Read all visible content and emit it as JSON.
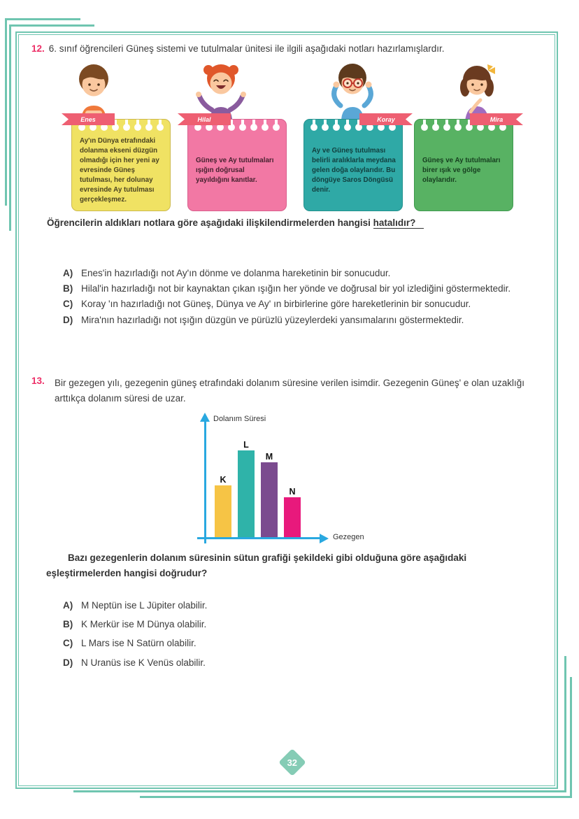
{
  "colors": {
    "frame": "#6fc5b0",
    "accent_number": "#ed2f67",
    "ribbon": "#ee5f72",
    "page_badge": "#85ccb5",
    "text": "#3b3b3b"
  },
  "page_number": "32",
  "q12": {
    "number": "12.",
    "intro": "6. sınıf öğrencileri Güneş sistemi ve tutulmalar ünitesi ile ilgili aşağıdaki notları hazırlamışlardır.",
    "students": [
      {
        "name": "Enes",
        "note": "Ay'ın Dünya etrafındaki dolanma ekseni düzgün olmadığı için her yeni ay evresinde Güneş tutulması, her dolunay evresinde Ay tutulması gerçekleşmez.",
        "card_color": "#f0e263",
        "card_border": "#cdba4e",
        "text_color": "#4b4422"
      },
      {
        "name": "Hilal",
        "note": "Güneş ve Ay tutulmaları ışığın doğrusal yayıldığını kanıtlar.",
        "card_color": "#f278a4",
        "card_border": "#d95e8d",
        "text_color": "#46212f"
      },
      {
        "name": "Koray",
        "note": "Ay ve Güneş tutulması belirli aralıklarla meydana gelen doğa olaylarıdır. Bu döngüye Saros Döngüsü denir.",
        "card_color": "#2fa9a6",
        "card_border": "#23918e",
        "text_color": "#113f3e"
      },
      {
        "name": "Mira",
        "note": "Güneş ve Ay tutulmaları birer ışık ve gölge olaylarıdır.",
        "card_color": "#58b263",
        "card_border": "#3f9a4e",
        "text_color": "#174020"
      }
    ],
    "stem": "Öğrencilerin aldıkları notlara göre aşağıdaki ilişkilendirmelerden hangisi ",
    "stem_underlined": "hatalıdır?",
    "options": [
      {
        "letter": "A)",
        "text": "Enes'in hazırladığı not Ay'ın dönme ve dolanma hareketinin bir sonucudur."
      },
      {
        "letter": "B)",
        "text": "Hilal'in hazırladığı not bir kaynaktan çıkan ışığın her yönde ve doğrusal bir yol izlediğini göstermektedir."
      },
      {
        "letter": "C)",
        "text": "Koray 'ın hazırladığı not Güneş, Dünya ve Ay' ın birbirlerine göre hareketlerinin bir sonucudur."
      },
      {
        "letter": "D)",
        "text": "Mira'nın hazırladığı not ışığın düzgün ve pürüzlü yüzeylerdeki yansımalarını göstermektedir."
      }
    ]
  },
  "q13": {
    "number": "13.",
    "intro": "Bir gezegen yılı, gezegenin güneş etrafındaki dolanım süresine verilen isimdir. Gezegenin Güneş' e olan uzaklığı arttıkça dolanım süresi de uzar.",
    "stem": "Bazı gezegenlerin dolanım süresinin sütun grafiği şekildeki gibi olduğuna göre aşağıdaki eşleştirmelerden hangisi doğrudur?",
    "options": [
      {
        "letter": "A)",
        "text": "M Neptün ise L Jüpiter olabilir."
      },
      {
        "letter": "B)",
        "text": "K Merkür ise M Dünya olabilir."
      },
      {
        "letter": "C)",
        "text": "L Mars ise N Satürn olabilir."
      },
      {
        "letter": "D)",
        "text": "N Uranüs ise K Venüs olabilir."
      }
    ]
  },
  "chart_data": {
    "type": "bar",
    "categories": [
      "K",
      "L",
      "M",
      "N"
    ],
    "values": [
      3.0,
      5.0,
      4.3,
      2.3
    ],
    "ylim": [
      0,
      5.5
    ],
    "ylabel": "Dolanım Süresi",
    "xlabel": "Gezegen",
    "bar_colors": [
      "#f6c445",
      "#2fb3a9",
      "#7b4b8f",
      "#e8197c"
    ],
    "axis_color": "#29a8e0",
    "grid": false,
    "legend": false
  }
}
